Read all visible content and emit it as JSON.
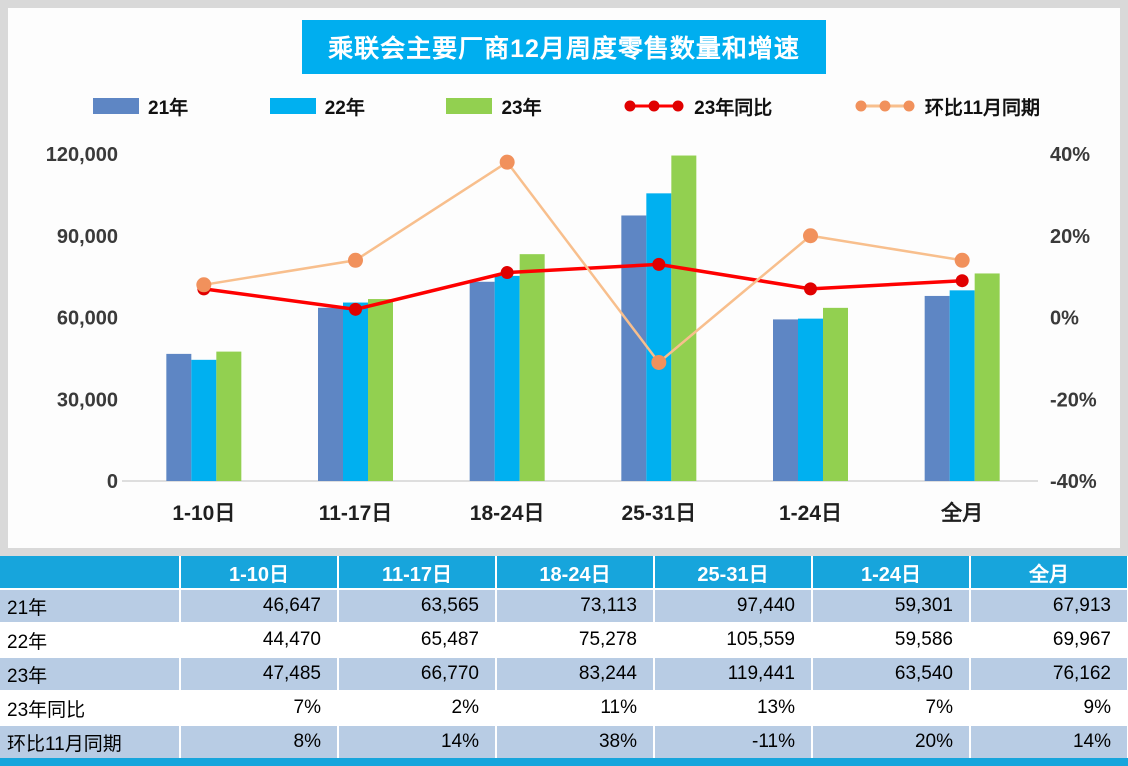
{
  "title": "乘联会主要厂商12月周度零售数量和增速",
  "legend": [
    {
      "label": "21年",
      "type": "bar",
      "color": "#5e86c4"
    },
    {
      "label": "22年",
      "type": "bar",
      "color": "#00b0f0"
    },
    {
      "label": "23年",
      "type": "bar",
      "color": "#92d050"
    },
    {
      "label": "23年同比",
      "type": "line",
      "color": "#fe0000",
      "dot": "#e00000"
    },
    {
      "label": "环比11月同期",
      "type": "line",
      "color": "#f8bf8d",
      "dot": "#f1915c"
    }
  ],
  "chart_data": {
    "type": "bar",
    "title": "乘联会主要厂商12月周度零售数量和增速",
    "categories": [
      "1-10日",
      "11-17日",
      "18-24日",
      "25-31日",
      "1-24日",
      "全月"
    ],
    "series": [
      {
        "name": "21年",
        "type": "bar",
        "color": "#5e86c4",
        "values": [
          46647,
          63565,
          73113,
          97440,
          59301,
          67913
        ]
      },
      {
        "name": "22年",
        "type": "bar",
        "color": "#00b0f0",
        "values": [
          44470,
          65487,
          75278,
          105559,
          59586,
          69967
        ]
      },
      {
        "name": "23年",
        "type": "bar",
        "color": "#92d050",
        "values": [
          47485,
          66770,
          83244,
          119441,
          63540,
          76162
        ]
      },
      {
        "name": "23年同比",
        "type": "line",
        "axis": "right",
        "color": "#fe0000",
        "dot_color": "#e00000",
        "values_pct": [
          7,
          2,
          11,
          13,
          7,
          9
        ]
      },
      {
        "name": "环比11月同期",
        "type": "line",
        "axis": "right",
        "color": "#f8bf8d",
        "dot_color": "#f1915c",
        "values_pct": [
          8,
          14,
          38,
          -11,
          20,
          14
        ]
      }
    ],
    "left_axis": {
      "min": 0,
      "max": 120000,
      "ticks": [
        "120,000",
        "90,000",
        "60,000",
        "30,000",
        "0"
      ]
    },
    "right_axis": {
      "min": -40,
      "max": 40,
      "ticks": [
        "40%",
        "20%",
        "0%",
        "-20%",
        "-40%"
      ]
    },
    "grid": false,
    "legend_position": "top"
  },
  "table": {
    "col_headers": [
      "",
      "1-10日",
      "11-17日",
      "18-24日",
      "25-31日",
      "1-24日",
      "全月"
    ],
    "rows": [
      {
        "label": "21年",
        "values": [
          "46,647",
          "63,565",
          "73,113",
          "97,440",
          "59,301",
          "67,913"
        ],
        "shade": true
      },
      {
        "label": "22年",
        "values": [
          "44,470",
          "65,487",
          "75,278",
          "105,559",
          "59,586",
          "69,967"
        ],
        "shade": false
      },
      {
        "label": "23年",
        "values": [
          "47,485",
          "66,770",
          "83,244",
          "119,441",
          "63,540",
          "76,162"
        ],
        "shade": true
      },
      {
        "label": "23年同比",
        "values": [
          "7%",
          "2%",
          "11%",
          "13%",
          "7%",
          "9%"
        ],
        "shade": false
      },
      {
        "label": "环比11月同期",
        "values": [
          "8%",
          "14%",
          "38%",
          "-11%",
          "20%",
          "14%"
        ],
        "shade": true
      }
    ]
  },
  "colors": {
    "title_bg": "#00aeef",
    "table_header_bg": "#17a5dc",
    "row_shade": "#b8cce4",
    "axis_text": "#3a3a3a",
    "category_text": "#1f1f1f"
  }
}
